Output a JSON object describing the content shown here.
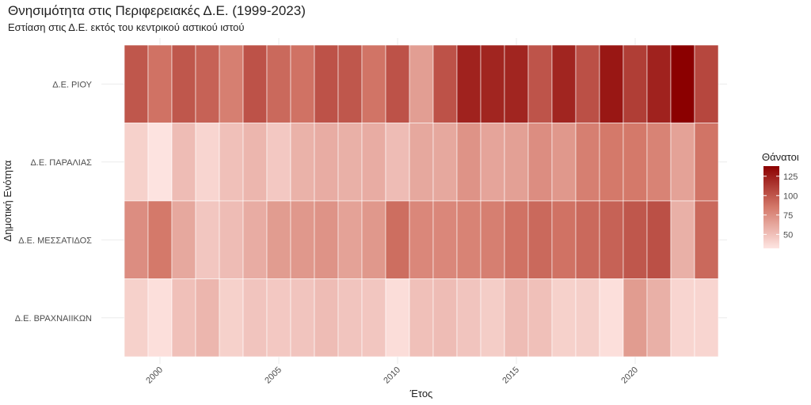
{
  "chart_data": {
    "type": "heatmap",
    "title": "Θνησιμότητα στις Περιφερειακές Δ.Ε. (1999-2023)",
    "subtitle": "Εστίαση στις Δ.Ε. εκτός του κεντρικού αστικού ιστού",
    "xlabel": "Έτος",
    "ylabel": "Δημοτική Ενότητα",
    "x": [
      1999,
      2000,
      2001,
      2002,
      2003,
      2004,
      2005,
      2006,
      2007,
      2008,
      2009,
      2010,
      2011,
      2012,
      2013,
      2014,
      2015,
      2016,
      2017,
      2018,
      2019,
      2020,
      2021,
      2022,
      2023
    ],
    "x_ticks": [
      2000,
      2005,
      2010,
      2015,
      2020
    ],
    "x_tick_labels": [
      "2000",
      "2005",
      "2010",
      "2015",
      "2020"
    ],
    "xlim": [
      1998.5,
      2023.5
    ],
    "categories": [
      "Δ.Ε. ΡΙΟΥ",
      "Δ.Ε. ΠΑΡΑΛΙΑΣ",
      "Δ.Ε. ΜΕΣΣΑΤΙΔΟΣ",
      "Δ.Ε. ΒΡΑΧΝΑΙΙΚΩΝ"
    ],
    "series": [
      {
        "name": "Δ.Ε. ΡΙΟΥ",
        "values": [
          100,
          88,
          100,
          95,
          82,
          102,
          92,
          88,
          102,
          100,
          87,
          102,
          67,
          102,
          123,
          122,
          122,
          101,
          122,
          103,
          128,
          111,
          123,
          138,
          107
        ]
      },
      {
        "name": "Δ.Ε. ΠΑΡΑΛΙΑΣ",
        "values": [
          42,
          33,
          52,
          40,
          50,
          55,
          46,
          57,
          60,
          58,
          60,
          52,
          62,
          62,
          72,
          64,
          66,
          75,
          70,
          82,
          85,
          85,
          80,
          65,
          87
        ]
      },
      {
        "name": "Δ.Ε. ΜΕΣΣΑΤΙΔΟΣ",
        "values": [
          75,
          85,
          62,
          47,
          52,
          60,
          68,
          70,
          72,
          65,
          70,
          90,
          78,
          78,
          80,
          82,
          88,
          92,
          88,
          92,
          95,
          100,
          103,
          58,
          92
        ]
      },
      {
        "name": "Δ.Ε. ΒΡΑΧΝΑΙΙΚΩΝ",
        "values": [
          42,
          35,
          50,
          55,
          42,
          48,
          46,
          48,
          52,
          48,
          47,
          36,
          50,
          52,
          48,
          44,
          52,
          50,
          42,
          43,
          35,
          68,
          58,
          40,
          40
        ]
      }
    ],
    "legend": {
      "title": "Θάνατοι",
      "ticks": [
        50,
        75,
        100,
        125
      ],
      "tick_labels": [
        "50",
        "75",
        "100",
        "125"
      ],
      "min": 32,
      "max": 138,
      "position": "right"
    },
    "colors": {
      "low": "#fee5e2",
      "mid": "#d4796a",
      "high": "#8b0000"
    },
    "grid": true
  }
}
